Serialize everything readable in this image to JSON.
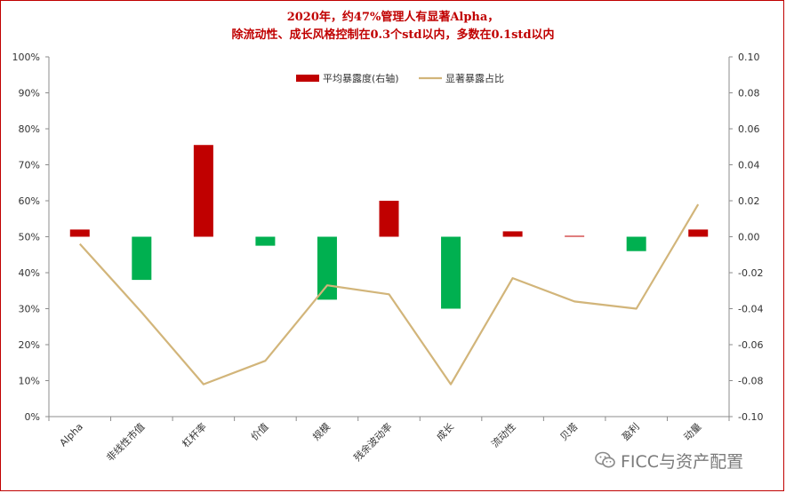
{
  "chart_data": {
    "type": "bar+line",
    "title_line1": "2020年，约47%管理人有显著Alpha，",
    "title_line2": "除流动性、成长风格控制在0.3个std以内，多数在0.1std以内",
    "categories": [
      "Alpha",
      "非线性市值",
      "杠杆率",
      "价值",
      "规模",
      "残余波动率",
      "成长",
      "流动性",
      "贝塔",
      "盈利",
      "动量"
    ],
    "series": [
      {
        "name": "平均暴露度(右轴)",
        "type": "bar",
        "axis": "right",
        "values": [
          0.004,
          -0.024,
          0.051,
          -0.005,
          -0.035,
          0.02,
          -0.04,
          0.003,
          0.0005,
          -0.008,
          0.004
        ]
      },
      {
        "name": "显著暴露占比",
        "type": "line",
        "axis": "left",
        "values": [
          48,
          29,
          9,
          15.5,
          36.5,
          34,
          9,
          38.5,
          32,
          30,
          59
        ]
      }
    ],
    "left_axis": {
      "min": 0,
      "max": 100,
      "step": 10,
      "ticks": [
        "0%",
        "10%",
        "20%",
        "30%",
        "40%",
        "50%",
        "60%",
        "70%",
        "80%",
        "90%",
        "100%"
      ]
    },
    "right_axis": {
      "min": -0.1,
      "max": 0.1,
      "step": 0.02,
      "ticks": [
        "-0.10",
        "-0.08",
        "-0.06",
        "-0.04",
        "-0.02",
        "0.00",
        "0.02",
        "0.04",
        "0.06",
        "0.08",
        "0.10"
      ]
    },
    "legend_position": "top-center",
    "grid": false,
    "colors": {
      "positive_bar": "#c00000",
      "negative_bar": "#00b050",
      "line": "#d2b57a",
      "title": "#c00000"
    }
  },
  "watermark": {
    "text": "FICC与资产配置",
    "icon": "wechat-icon"
  }
}
